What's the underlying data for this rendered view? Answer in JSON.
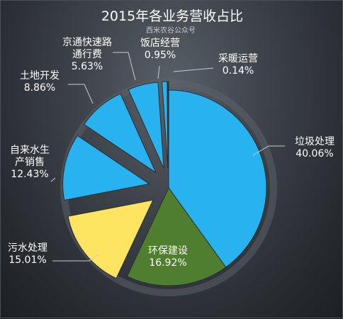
{
  "chart_data": {
    "type": "pie",
    "title": "2015年各业务营收占比",
    "watermark": "西米农谷公众号",
    "slices": [
      {
        "name": "垃圾处理",
        "value": 40.06,
        "label": "40.06%",
        "color": "#29b2f0",
        "explode": 0
      },
      {
        "name": "环保建设",
        "value": 16.92,
        "label": "16.92%",
        "color": "#4f7f2e",
        "explode": 0
      },
      {
        "name": "污水处理",
        "value": 15.01,
        "label": "15.01%",
        "color": "#fde562",
        "explode": 1
      },
      {
        "name": "自来水生产销售",
        "value": 12.43,
        "label": "12.43%",
        "color": "#29b2f0",
        "explode": 1
      },
      {
        "name": "土地开发",
        "value": 8.86,
        "label": "8.86%",
        "color": "#29b2f0",
        "explode": 1
      },
      {
        "name": "京通快速路通行费",
        "value": 5.63,
        "label": "5.63%",
        "color": "#29b2f0",
        "explode": 1
      },
      {
        "name": "饭店经营",
        "value": 0.95,
        "label": "0.95%",
        "color": "#29b2f0",
        "explode": 1
      },
      {
        "name": "采暖运营",
        "value": 0.14,
        "label": "0.14%",
        "color": "#29b2f0",
        "explode": 1
      }
    ],
    "label_lines": [
      [
        "垃圾处理",
        "40.06%"
      ],
      [
        "环保建设",
        "16.92%"
      ],
      [
        "污水处理",
        "15.01%"
      ],
      [
        "自来水生",
        "产销售",
        "12.43%"
      ],
      [
        "土地开发",
        "8.86%"
      ],
      [
        "京通快速路",
        "通行费",
        "5.63%"
      ],
      [
        "饭店经营",
        "0.95%"
      ],
      [
        "采暖运营",
        "0.14%"
      ]
    ]
  }
}
